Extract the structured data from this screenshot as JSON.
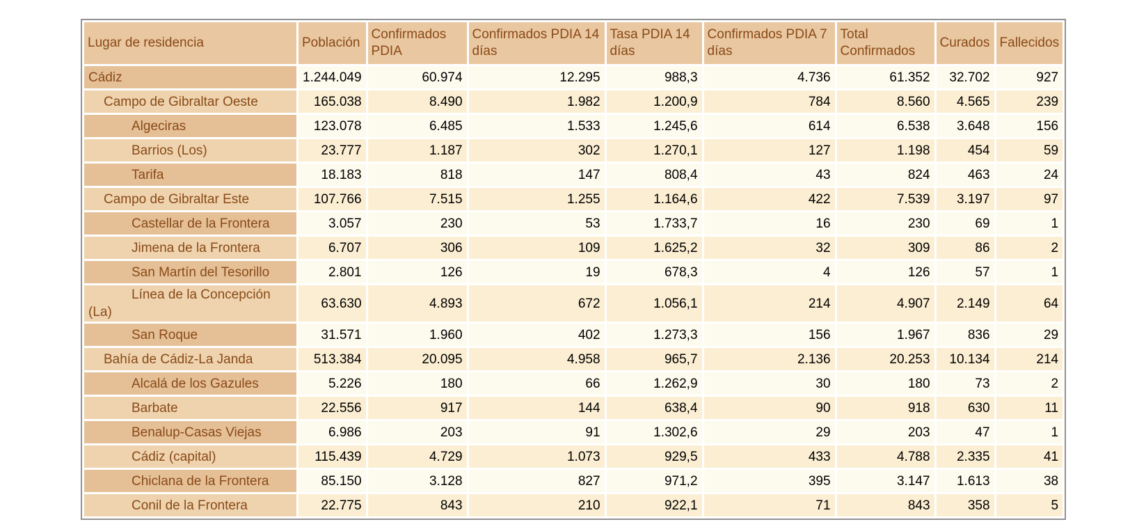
{
  "page": {
    "background": "#ffffff",
    "language": "es"
  },
  "colors": {
    "header_background": "#e9c7a0",
    "label_cell_dark": "#e5c097",
    "label_cell_light": "#eed3ae",
    "data_cell_cream": "#fdfbee",
    "data_cell_peach": "#fbeed2",
    "heading_text_brown": "#8a4a18",
    "number_text": "#000000",
    "outer_border_gray": "#919191"
  },
  "table": {
    "columns": [
      {
        "key": "lugar",
        "label": "Lugar de residencia"
      },
      {
        "key": "poblacion",
        "label": "Población"
      },
      {
        "key": "conf_pdia",
        "label": "Confirmados PDIA"
      },
      {
        "key": "pdia14",
        "label": "Confirmados PDIA 14 días"
      },
      {
        "key": "tasa14",
        "label": "Tasa PDIA 14 días"
      },
      {
        "key": "pdia7",
        "label": "Confirmados PDIA 7 días"
      },
      {
        "key": "total_conf",
        "label": "Total Confirmados"
      },
      {
        "key": "curados",
        "label": "Curados"
      },
      {
        "key": "fallecidos",
        "label": "Fallecidos"
      }
    ],
    "rows": [
      {
        "name": "Cádiz",
        "level": 0,
        "values": [
          "1.244.049",
          "60.974",
          "12.295",
          "988,3",
          "4.736",
          "61.352",
          "32.702",
          "927"
        ]
      },
      {
        "name": "Campo de Gibraltar Oeste",
        "level": 1,
        "values": [
          "165.038",
          "8.490",
          "1.982",
          "1.200,9",
          "784",
          "8.560",
          "4.565",
          "239"
        ]
      },
      {
        "name": "Algeciras",
        "level": 2,
        "values": [
          "123.078",
          "6.485",
          "1.533",
          "1.245,6",
          "614",
          "6.538",
          "3.648",
          "156"
        ]
      },
      {
        "name": "Barrios (Los)",
        "level": 2,
        "values": [
          "23.777",
          "1.187",
          "302",
          "1.270,1",
          "127",
          "1.198",
          "454",
          "59"
        ]
      },
      {
        "name": "Tarifa",
        "level": 2,
        "values": [
          "18.183",
          "818",
          "147",
          "808,4",
          "43",
          "824",
          "463",
          "24"
        ]
      },
      {
        "name": "Campo de Gibraltar Este",
        "level": 1,
        "values": [
          "107.766",
          "7.515",
          "1.255",
          "1.164,6",
          "422",
          "7.539",
          "3.197",
          "97"
        ]
      },
      {
        "name": "Castellar de la Frontera",
        "level": 2,
        "values": [
          "3.057",
          "230",
          "53",
          "1.733,7",
          "16",
          "230",
          "69",
          "1"
        ]
      },
      {
        "name": "Jimena de la Frontera",
        "level": 2,
        "values": [
          "6.707",
          "306",
          "109",
          "1.625,2",
          "32",
          "309",
          "86",
          "2"
        ]
      },
      {
        "name": "San Martín del Tesorillo",
        "level": 2,
        "values": [
          "2.801",
          "126",
          "19",
          "678,3",
          "4",
          "126",
          "57",
          "1"
        ]
      },
      {
        "name": "Línea de la Concepción (La)",
        "level": 2,
        "values": [
          "63.630",
          "4.893",
          "672",
          "1.056,1",
          "214",
          "4.907",
          "2.149",
          "64"
        ]
      },
      {
        "name": "San Roque",
        "level": 2,
        "values": [
          "31.571",
          "1.960",
          "402",
          "1.273,3",
          "156",
          "1.967",
          "836",
          "29"
        ]
      },
      {
        "name": "Bahía de Cádiz-La Janda",
        "level": 1,
        "values": [
          "513.384",
          "20.095",
          "4.958",
          "965,7",
          "2.136",
          "20.253",
          "10.134",
          "214"
        ]
      },
      {
        "name": "Alcalá de los Gazules",
        "level": 2,
        "values": [
          "5.226",
          "180",
          "66",
          "1.262,9",
          "30",
          "180",
          "73",
          "2"
        ]
      },
      {
        "name": "Barbate",
        "level": 2,
        "values": [
          "22.556",
          "917",
          "144",
          "638,4",
          "90",
          "918",
          "630",
          "11"
        ]
      },
      {
        "name": "Benalup-Casas Viejas",
        "level": 2,
        "values": [
          "6.986",
          "203",
          "91",
          "1.302,6",
          "29",
          "203",
          "47",
          "1"
        ]
      },
      {
        "name": "Cádiz (capital)",
        "level": 2,
        "values": [
          "115.439",
          "4.729",
          "1.073",
          "929,5",
          "433",
          "4.788",
          "2.335",
          "41"
        ]
      },
      {
        "name": "Chiclana de la Frontera",
        "level": 2,
        "values": [
          "85.150",
          "3.128",
          "827",
          "971,2",
          "395",
          "3.147",
          "1.613",
          "38"
        ]
      },
      {
        "name": "Conil de la Frontera",
        "level": 2,
        "values": [
          "22.775",
          "843",
          "210",
          "922,1",
          "71",
          "843",
          "358",
          "5"
        ]
      }
    ]
  }
}
